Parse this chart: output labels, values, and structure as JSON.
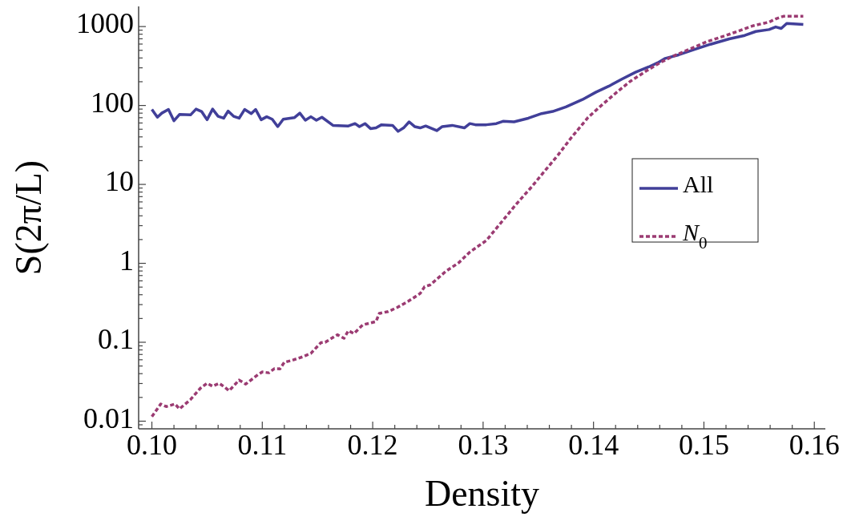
{
  "chart_data": {
    "type": "line",
    "xlabel": "Density",
    "ylabel": "S(2π/L)",
    "log": "y",
    "legend": "right",
    "grid": false,
    "xlim": [
      0.0988,
      0.161
    ],
    "ylim": [
      0.008,
      1800
    ],
    "xticks": [
      {
        "value": 0.1,
        "label": "0.10"
      },
      {
        "value": 0.102,
        "label": null
      },
      {
        "value": 0.104,
        "label": null
      },
      {
        "value": 0.106,
        "label": null
      },
      {
        "value": 0.108,
        "label": null
      },
      0.11,
      {
        "value": 0.112,
        "label": null
      },
      {
        "value": 0.114,
        "label": null
      },
      {
        "value": 0.116,
        "label": null
      },
      {
        "value": 0.118,
        "label": null
      },
      0.12,
      {
        "value": 0.122,
        "label": null
      },
      {
        "value": 0.124,
        "label": null
      },
      {
        "value": 0.126,
        "label": null
      },
      {
        "value": 0.128,
        "label": null
      },
      0.13,
      {
        "value": 0.132,
        "label": null
      },
      {
        "value": 0.134,
        "label": null
      },
      {
        "value": 0.136,
        "label": null
      },
      {
        "value": 0.138,
        "label": null
      },
      0.14,
      {
        "value": 0.142,
        "label": null
      },
      {
        "value": 0.144,
        "label": null
      },
      {
        "value": 0.146,
        "label": null
      },
      {
        "value": 0.148,
        "label": null
      },
      0.15,
      {
        "value": 0.152,
        "label": null
      },
      {
        "value": 0.154,
        "label": null
      },
      {
        "value": 0.156,
        "label": null
      },
      {
        "value": 0.158,
        "label": null
      },
      0.16
    ],
    "yticks": [
      {
        "value": 0.009,
        "label": null
      },
      0.01,
      {
        "value": 0.02,
        "label": null
      },
      {
        "value": 0.03,
        "label": null
      },
      {
        "value": 0.04,
        "label": null
      },
      {
        "value": 0.05,
        "label": null
      },
      {
        "value": 0.06,
        "label": null
      },
      {
        "value": 0.07,
        "label": null
      },
      {
        "value": 0.08,
        "label": null
      },
      {
        "value": 0.09,
        "label": null
      },
      0.1,
      {
        "value": 0.2,
        "label": null
      },
      {
        "value": 0.3,
        "label": null
      },
      {
        "value": 0.4,
        "label": null
      },
      {
        "value": 0.5,
        "label": null
      },
      {
        "value": 0.6,
        "label": null
      },
      {
        "value": 0.7,
        "label": null
      },
      {
        "value": 0.8,
        "label": null
      },
      {
        "value": 0.9,
        "label": null
      },
      1,
      {
        "value": 2,
        "label": null
      },
      {
        "value": 3,
        "label": null
      },
      {
        "value": 4,
        "label": null
      },
      {
        "value": 5,
        "label": null
      },
      {
        "value": 6,
        "label": null
      },
      {
        "value": 7,
        "label": null
      },
      {
        "value": 8,
        "label": null
      },
      {
        "value": 9,
        "label": null
      },
      10,
      {
        "value": 20,
        "label": null
      },
      {
        "value": 30,
        "label": null
      },
      {
        "value": 40,
        "label": null
      },
      {
        "value": 50,
        "label": null
      },
      {
        "value": 60,
        "label": null
      },
      {
        "value": 70,
        "label": null
      },
      {
        "value": 80,
        "label": null
      },
      {
        "value": 90,
        "label": null
      },
      100,
      {
        "value": 200,
        "label": null
      },
      {
        "value": 300,
        "label": null
      },
      {
        "value": 400,
        "label": null
      },
      {
        "value": 500,
        "label": null
      },
      {
        "value": 600,
        "label": null
      },
      {
        "value": 700,
        "label": null
      },
      {
        "value": 800,
        "label": null
      },
      {
        "value": 900,
        "label": null
      },
      1000
    ],
    "series": [
      {
        "name": "All",
        "color": "#413f99",
        "line_style": "solid",
        "x": [
          0.1,
          0.1005,
          0.1009,
          0.1015,
          0.102,
          0.1025,
          0.1035,
          0.104,
          0.1045,
          0.105,
          0.1055,
          0.106,
          0.1065,
          0.1069,
          0.1074,
          0.1079,
          0.1084,
          0.109,
          0.1094,
          0.1099,
          0.1104,
          0.1109,
          0.1114,
          0.1119,
          0.1129,
          0.1134,
          0.1139,
          0.1144,
          0.1149,
          0.1154,
          0.1164,
          0.1178,
          0.1184,
          0.1188,
          0.1193,
          0.1198,
          0.1203,
          0.1208,
          0.1218,
          0.1223,
          0.1228,
          0.1233,
          0.1238,
          0.1243,
          0.1248,
          0.1258,
          0.1263,
          0.1272,
          0.1283,
          0.1288,
          0.1293,
          0.1303,
          0.1312,
          0.1318,
          0.1328,
          0.1341,
          0.1353,
          0.1363,
          0.1375,
          0.139,
          0.1402,
          0.1414,
          0.1426,
          0.1438,
          0.145,
          0.1458,
          0.1465,
          0.1477,
          0.1491,
          0.1506,
          0.1523,
          0.1537,
          0.1547,
          0.1559,
          0.1565,
          0.157,
          0.1575,
          0.159
        ],
        "values": [
          89,
          71,
          80,
          89,
          64,
          77,
          76,
          90,
          84,
          66,
          90,
          73,
          69,
          85,
          73,
          69,
          89,
          79,
          89,
          66,
          72,
          67,
          54,
          67,
          70,
          80,
          65,
          72,
          65,
          71,
          56,
          55,
          59,
          54,
          59,
          51,
          52,
          57,
          56,
          47,
          52,
          62,
          54,
          52,
          55,
          48,
          54,
          56,
          52,
          59,
          57,
          57,
          59,
          63,
          62,
          69,
          79,
          84,
          96,
          119,
          147,
          176,
          217,
          264,
          308,
          347,
          395,
          438,
          511,
          597,
          698,
          772,
          867,
          916,
          990,
          946,
          1096,
          1062
        ]
      },
      {
        "name": "N$_{0}$",
        "color": "#9b3b72",
        "line_style": "dotted",
        "x": [
          0.1,
          0.1008,
          0.1013,
          0.1021,
          0.1025,
          0.1035,
          0.1044,
          0.105,
          0.1055,
          0.1061,
          0.1066,
          0.107,
          0.1079,
          0.1085,
          0.1096,
          0.11,
          0.1106,
          0.1111,
          0.1116,
          0.112,
          0.1126,
          0.1137,
          0.1144,
          0.1153,
          0.1157,
          0.1168,
          0.1174,
          0.1178,
          0.1183,
          0.1191,
          0.1203,
          0.1206,
          0.1214,
          0.1222,
          0.1232,
          0.1243,
          0.1247,
          0.1252,
          0.1266,
          0.1278,
          0.1288,
          0.1303,
          0.1329,
          0.1344,
          0.1356,
          0.1368,
          0.138,
          0.1395,
          0.1407,
          0.1421,
          0.1433,
          0.1448,
          0.146,
          0.1472,
          0.1489,
          0.1503,
          0.152,
          0.1545,
          0.1559,
          0.1565,
          0.1572,
          0.159
        ],
        "values": [
          0.0114,
          0.0165,
          0.0153,
          0.0165,
          0.0143,
          0.0188,
          0.0262,
          0.0302,
          0.0277,
          0.0302,
          0.0269,
          0.0243,
          0.0332,
          0.0295,
          0.0388,
          0.042,
          0.041,
          0.0463,
          0.046,
          0.0558,
          0.0585,
          0.0657,
          0.0722,
          0.0986,
          0.1,
          0.1245,
          0.1124,
          0.14,
          0.129,
          0.166,
          0.183,
          0.232,
          0.245,
          0.275,
          0.329,
          0.415,
          0.505,
          0.532,
          0.787,
          1.02,
          1.39,
          1.95,
          5.4,
          9.33,
          14.9,
          23.7,
          39.3,
          70.3,
          99.8,
          147,
          201,
          275,
          347,
          421,
          531,
          645,
          772,
          1028,
          1140,
          1250,
          1350,
          1350
        ]
      }
    ]
  }
}
